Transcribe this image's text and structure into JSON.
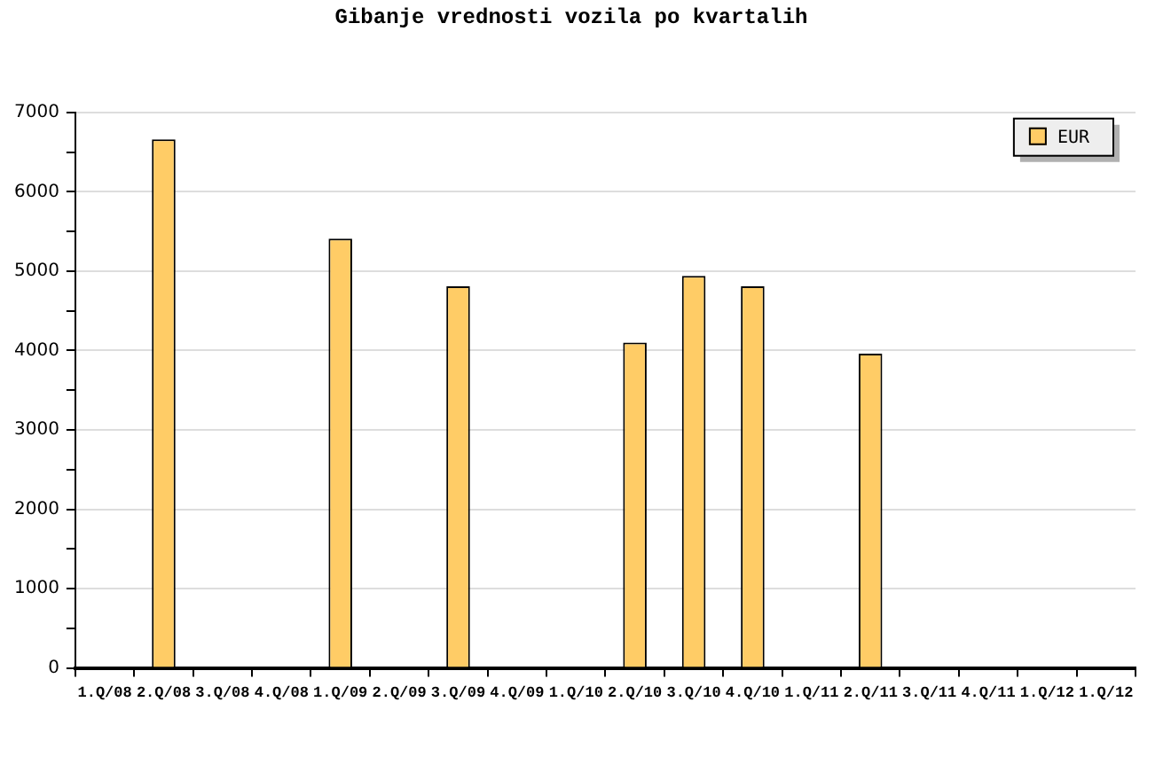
{
  "chart_data": {
    "type": "bar",
    "title": "Gibanje vrednosti vozila po kvartalih",
    "categories": [
      "1.Q/08",
      "2.Q/08",
      "3.Q/08",
      "4.Q/08",
      "1.Q/09",
      "2.Q/09",
      "3.Q/09",
      "4.Q/09",
      "1.Q/10",
      "2.Q/10",
      "3.Q/10",
      "4.Q/10",
      "1.Q/11",
      "2.Q/11",
      "3.Q/11",
      "4.Q/11",
      "1.Q/12",
      "1.Q/12"
    ],
    "series": [
      {
        "name": "EUR",
        "color": "#ffcc66",
        "values": [
          null,
          6660,
          null,
          null,
          5410,
          null,
          4810,
          null,
          null,
          4100,
          4940,
          4810,
          null,
          3960,
          null,
          null,
          null,
          null
        ]
      }
    ],
    "ylim": [
      0,
      7000
    ],
    "yticks": [
      0,
      {
        "value": 500,
        "label": null
      },
      1000,
      {
        "value": 1500,
        "label": null
      },
      2000,
      {
        "value": 2500,
        "label": null
      },
      3000,
      {
        "value": 3500,
        "label": null
      },
      4000,
      {
        "value": 4500,
        "label": null
      },
      5000,
      {
        "value": 5500,
        "label": null
      },
      6000,
      {
        "value": 6500,
        "label": null
      },
      7000
    ],
    "grid": "y",
    "legend": "top right"
  }
}
